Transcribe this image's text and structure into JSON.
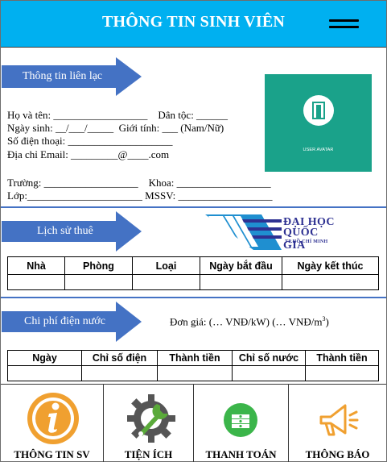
{
  "header": {
    "title": "THÔNG TIN SINH VIÊN"
  },
  "contact": {
    "banner": "Thông tin liên lạc",
    "lines": [
      "Họ và tên: __________________    Dân tộc: ______",
      "Ngày sinh: __/___/_____  Giới tính: ___ (Nam/Nữ)",
      "Số điện thoại: ____________________",
      "Địa chỉ Email: _________@____.com",
      "Trường: __________________    Khoa: __________________",
      "Lớp:______________________ MSSV: __________________"
    ],
    "avatar_label": "USER AVATAR"
  },
  "rental": {
    "banner": "Lịch sử thuê",
    "logo": {
      "line1": "ĐẠI HỌC",
      "line2": "QUỐC GIA",
      "line3": "TP.HỒ CHÍ MINH"
    },
    "headers": [
      "Nhà",
      "Phòng",
      "Loại",
      "Ngày bắt đầu",
      "Ngày kết thúc"
    ]
  },
  "utilities": {
    "banner": "Chi phí điện nước",
    "unit_price": "Đơn giá: (… VNĐ/kW) (… VNĐ/m",
    "unit_sup": "3",
    "unit_close": ")",
    "headers": [
      "Ngày",
      "Chỉ số điện",
      "Thành tiền",
      "Chỉ số nước",
      "Thành tiền"
    ]
  },
  "nav": [
    {
      "label": "THÔNG TIN SV",
      "icon": "info-icon"
    },
    {
      "label": "TIỆN ÍCH",
      "icon": "gear-wrench-icon"
    },
    {
      "label": "THANH TOÁN",
      "icon": "money-icon"
    },
    {
      "label": "THÔNG BÁO",
      "icon": "megaphone-icon"
    }
  ],
  "colors": {
    "header": "#00b0f0",
    "banner": "#4472c4",
    "avatar": "#1aa28a",
    "divider": "#4472c4"
  }
}
